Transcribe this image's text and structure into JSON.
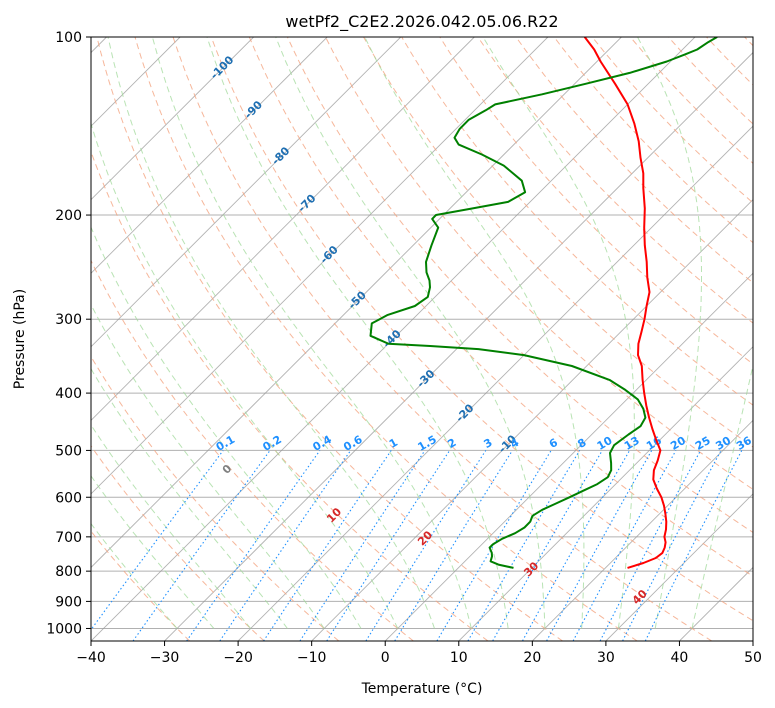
{
  "chart_data": {
    "type": "line",
    "title": "wetPf2_C2E2.2026.042.05.06.R22",
    "xlabel": "Temperature (°C)",
    "ylabel": "Pressure (hPa)",
    "xlim": [
      -40,
      50
    ],
    "ylim": [
      1050,
      100
    ],
    "y_scale": "log",
    "x_ticks": [
      "−40",
      "−30",
      "−20",
      "−10",
      "0",
      "10",
      "20",
      "30",
      "40",
      "50"
    ],
    "x_tick_values": [
      -40,
      -30,
      -20,
      -10,
      0,
      10,
      20,
      30,
      40,
      50
    ],
    "y_ticks": [
      "100",
      "200",
      "300",
      "400",
      "500",
      "600",
      "700",
      "800",
      "900",
      "1000"
    ],
    "y_tick_values": [
      100,
      200,
      300,
      400,
      500,
      600,
      700,
      800,
      900,
      1000
    ],
    "grid": true,
    "colors": {
      "temperature": "#ff0000",
      "dewpoint": "#008000",
      "isotherm": "#999999",
      "dry_adiabat": "#f4a582",
      "moist_adiabat": "#a1d99b",
      "mixing_ratio": "#1e90ff",
      "isotherm_label": "#1f6fb2",
      "mixing_label": "#1e90ff",
      "adiabat_label": "#d62728"
    },
    "series": [
      {
        "key": "temperature",
        "p": [
          790,
          775,
          760,
          745,
          730,
          715,
          700,
          680,
          660,
          640,
          620,
          600,
          580,
          560,
          540,
          520,
          500,
          480,
          460,
          440,
          420,
          400,
          380,
          360,
          345,
          330,
          315,
          300,
          285,
          270,
          255,
          240,
          225,
          210,
          195,
          180,
          170,
          160,
          150,
          140,
          130,
          120,
          110,
          105,
          100
        ],
        "t": [
          23,
          24.5,
          25.5,
          25.7,
          25.3,
          24.7,
          23.8,
          23,
          22,
          20.8,
          19.5,
          18,
          16.2,
          14.5,
          13.3,
          12.5,
          11.5,
          9.5,
          7.5,
          5.5,
          3.5,
          1.5,
          -0.5,
          -2.5,
          -4.5,
          -6,
          -7.2,
          -8.5,
          -10,
          -11.5,
          -13.8,
          -16,
          -18.5,
          -21,
          -23.5,
          -26.5,
          -28.5,
          -31,
          -33.5,
          -36.5,
          -40,
          -44.5,
          -49.5,
          -52,
          -55
        ]
      },
      {
        "key": "dewpoint",
        "p": [
          790,
          780,
          770,
          755,
          745,
          730,
          720,
          705,
          690,
          675,
          660,
          645,
          630,
          615,
          600,
          585,
          570,
          555,
          540,
          525,
          505,
          490,
          470,
          455,
          440,
          425,
          410,
          395,
          380,
          360,
          345,
          337,
          333,
          330,
          320,
          305,
          295,
          285,
          275,
          265,
          258,
          250,
          240,
          225,
          210,
          203,
          200,
          195,
          190,
          183,
          175,
          165,
          158,
          152,
          148,
          143,
          138,
          133,
          130,
          125,
          120,
          115,
          110,
          107,
          105,
          102,
          100
        ],
        "t": [
          7.5,
          5,
          3.5,
          3,
          2.5,
          1.5,
          1.5,
          2,
          3,
          3.5,
          3.5,
          3,
          3.5,
          4.5,
          5.5,
          6.5,
          7.5,
          8,
          7.5,
          6.5,
          5,
          4.5,
          5,
          5.5,
          5,
          3.5,
          1.5,
          -1.5,
          -5,
          -12,
          -20,
          -27,
          -34,
          -40,
          -43.5,
          -45,
          -44,
          -41.5,
          -41,
          -42,
          -43,
          -44.5,
          -46,
          -47.5,
          -49,
          -51,
          -51,
          -47,
          -43,
          -42,
          -44,
          -48.5,
          -53,
          -57.5,
          -59,
          -59.5,
          -59.5,
          -58.5,
          -58,
          -53,
          -48.5,
          -44,
          -40.5,
          -39,
          -38,
          -37.5,
          -37
        ]
      }
    ],
    "isotherm_labels": [
      "-100",
      "-90",
      "-80",
      "-70",
      "-60",
      "-50",
      "-40",
      "-30",
      "-20",
      "-10"
    ],
    "isotherm_label_values": [
      -100,
      -90,
      -80,
      -70,
      -60,
      -50,
      -40,
      -30,
      -20,
      -10
    ],
    "mixing_ratio_labels": [
      "0.1",
      "0.2",
      "0.4",
      "0.6",
      "1",
      "1.5",
      "2",
      "3",
      "4",
      "6",
      "8",
      "10",
      "13",
      "16",
      "20",
      "25",
      "30",
      "36"
    ],
    "mixing_ratio_values": [
      0.1,
      0.2,
      0.4,
      0.6,
      1,
      1.5,
      2,
      3,
      4,
      6,
      8,
      10,
      13,
      16,
      20,
      25,
      30,
      36
    ],
    "dry_adiabat_labels": [
      "0",
      "10",
      "20",
      "30",
      "40"
    ],
    "dry_adiabat_label_values": [
      0,
      10,
      20,
      30,
      40
    ]
  }
}
